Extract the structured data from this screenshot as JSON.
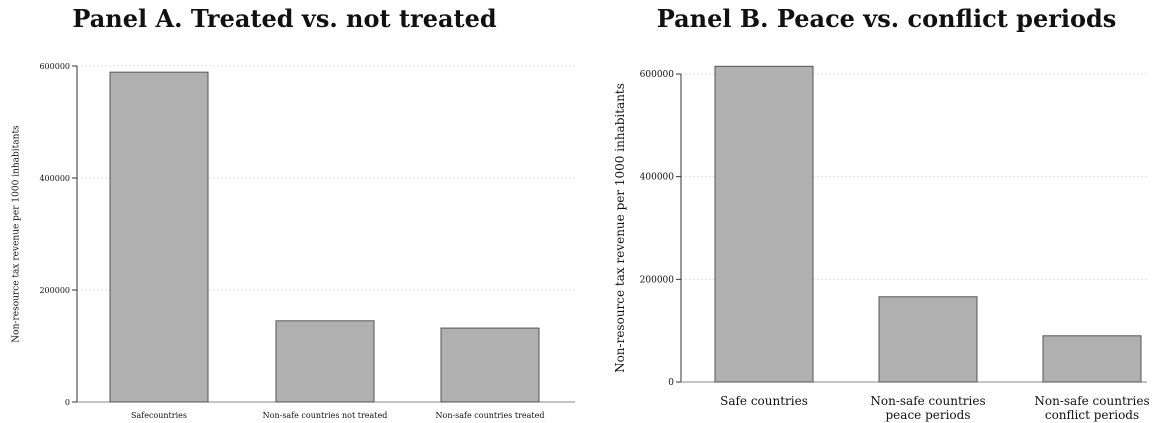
{
  "chart_data": [
    {
      "type": "bar",
      "title": "Panel A. Treated vs. not treated",
      "xlabel": "",
      "ylabel": "Non-resource tax revenue per 1000 inhabitants",
      "categories": [
        [
          "Safecountries"
        ],
        [
          "Non-safe countries not treated"
        ],
        [
          "Non-safe countries treated"
        ]
      ],
      "values": [
        589000,
        145000,
        132000
      ],
      "ylim": [
        0,
        600000
      ],
      "yticks": [
        0,
        200000,
        400000,
        600000
      ],
      "grid": true,
      "bar_color": "#b0b0b0",
      "edge_color": "#555555"
    },
    {
      "type": "bar",
      "title": "Panel B. Peace vs. conflict periods",
      "xlabel": "",
      "ylabel": "Non-resource tax revenue per 1000 inhabitants",
      "categories": [
        [
          "Safe countries"
        ],
        [
          "Non-safe countries",
          "peace periods"
        ],
        [
          "Non-safe countries",
          "conflict periods"
        ]
      ],
      "values": [
        615000,
        166000,
        90000
      ],
      "ylim": [
        0,
        600000
      ],
      "yticks": [
        0,
        200000,
        400000,
        600000
      ],
      "grid": true,
      "bar_color": "#b0b0b0",
      "edge_color": "#555555"
    }
  ]
}
